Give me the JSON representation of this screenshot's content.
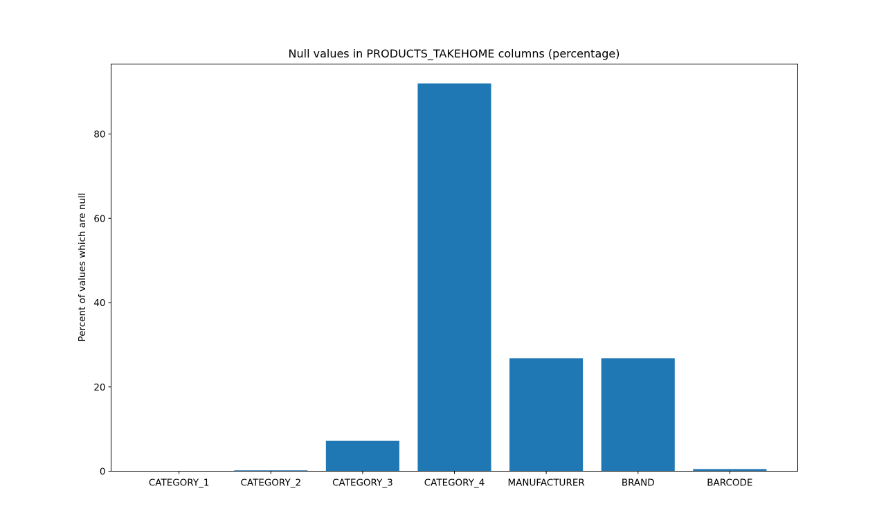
{
  "chart_data": {
    "type": "bar",
    "title": "Null values in PRODUCTS_TAKEHOME columns (percentage)",
    "xlabel": "",
    "ylabel": "Percent of values which are null",
    "categories": [
      "CATEGORY_1",
      "CATEGORY_2",
      "CATEGORY_3",
      "CATEGORY_4",
      "MANUFACTURER",
      "BRAND",
      "BARCODE"
    ],
    "values": [
      0.0,
      0.2,
      7.2,
      92.0,
      26.8,
      26.8,
      0.5
    ],
    "ylim": [
      0,
      96.6
    ],
    "yticks": [
      0,
      20,
      40,
      60,
      80
    ],
    "grid": false,
    "legend": "none",
    "bar_color": "#1f77b4"
  }
}
